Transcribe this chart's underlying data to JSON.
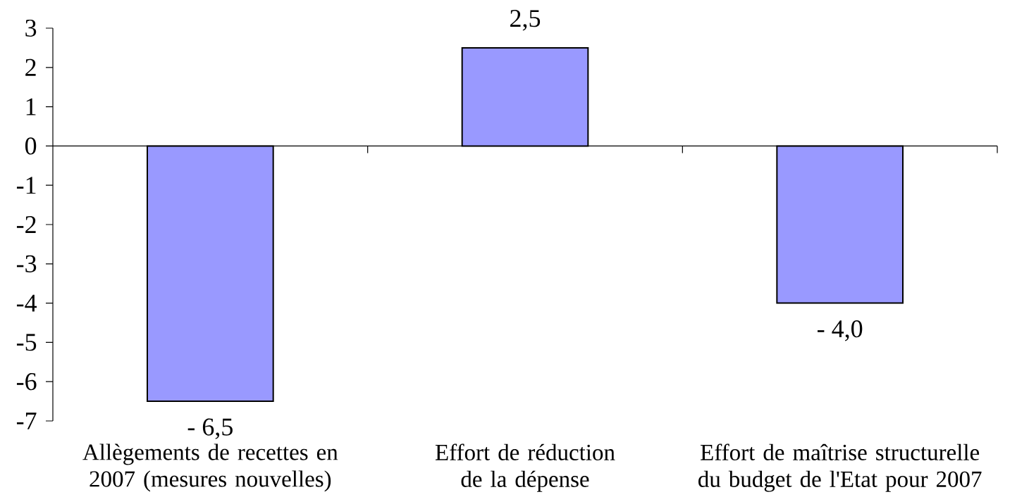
{
  "chart_data": {
    "type": "bar",
    "categories": [
      "Allègements de recettes en 2007 (mesures nouvelles)",
      "Effort de réduction de la dépense",
      "Effort de maîtrise structurelle du budget de l'Etat pour 2007"
    ],
    "values": [
      -6.5,
      2.5,
      -4.0
    ],
    "value_labels": [
      "- 6,5",
      "2,5",
      "- 4,0"
    ],
    "color": "#9999ff",
    "ylim": [
      -7,
      3
    ],
    "yticks": [
      -7,
      -6,
      -5,
      -4,
      -3,
      -2,
      -1,
      0,
      1,
      2,
      3
    ]
  }
}
